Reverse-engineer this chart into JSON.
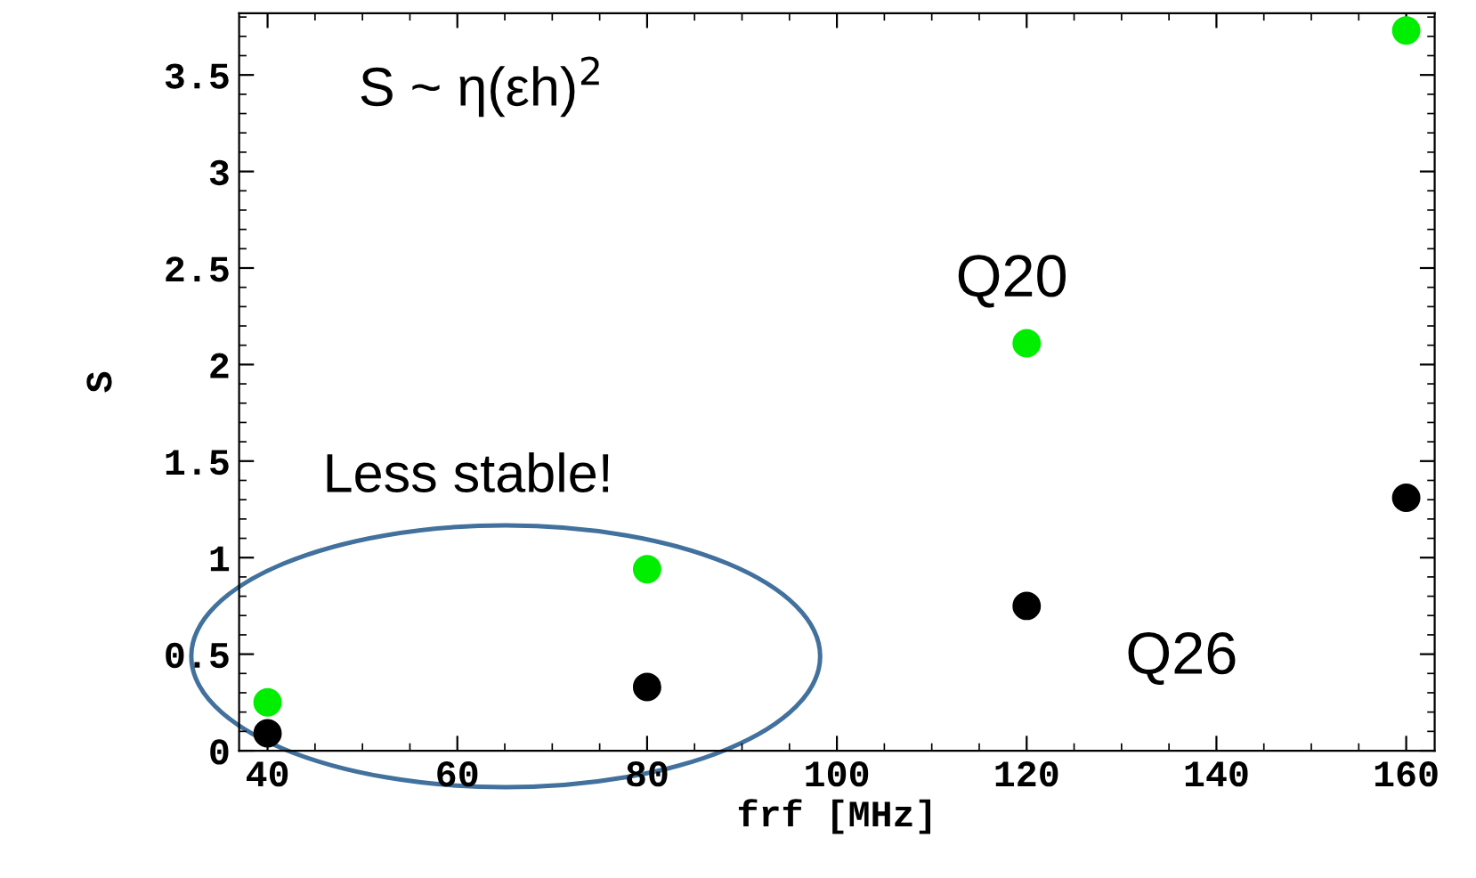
{
  "chart_data": {
    "type": "scatter",
    "xlabel": "frf [MHz]",
    "ylabel": "S",
    "x": [
      40,
      80,
      120,
      160
    ],
    "series": [
      {
        "name": "Q20",
        "color": "#00ee00",
        "values": [
          0.25,
          0.94,
          2.11,
          3.73
        ]
      },
      {
        "name": "Q26",
        "color": "#000000",
        "values": [
          0.09,
          0.33,
          0.75,
          1.31
        ]
      }
    ],
    "xlim": [
      37,
      163
    ],
    "ylim": [
      0,
      3.82
    ],
    "xticks": [
      40,
      60,
      80,
      100,
      120,
      140,
      160
    ],
    "yticks": [
      0,
      0.5,
      1,
      1.5,
      2,
      2.5,
      3,
      3.5
    ],
    "marker": "circle",
    "grid": false,
    "legend": false,
    "annotations": [
      "S ~ η(εh)$^{2}$",
      "Less stable!"
    ]
  }
}
